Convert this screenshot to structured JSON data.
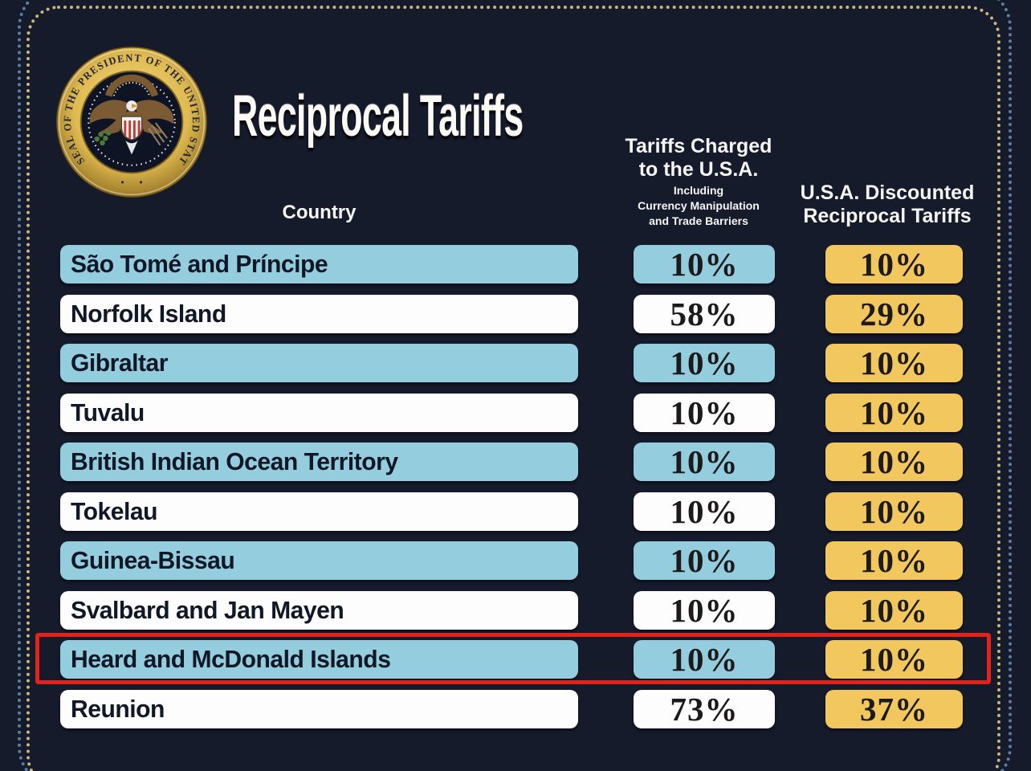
{
  "header": {
    "title": "Reciprocal Tariffs",
    "seal_text": "SEAL OF THE PRESIDENT OF THE UNITED STATES"
  },
  "table": {
    "country_header": "Country",
    "charged_header_line1": "Tariffs Charged",
    "charged_header_line2": "to the U.S.A.",
    "charged_subheader_line1": "Including",
    "charged_subheader_line2": "Currency Manipulation",
    "charged_subheader_line3": "and Trade Barriers",
    "discounted_header_line1": "U.S.A. Discounted",
    "discounted_header_line2": "Reciprocal Tariffs",
    "rows": [
      {
        "country": "São Tomé and Príncipe",
        "charged": "10%",
        "discounted": "10%",
        "tone": "blue",
        "highlighted": false
      },
      {
        "country": "Norfolk Island",
        "charged": "58%",
        "discounted": "29%",
        "tone": "white",
        "highlighted": false
      },
      {
        "country": "Gibraltar",
        "charged": "10%",
        "discounted": "10%",
        "tone": "blue",
        "highlighted": false
      },
      {
        "country": "Tuvalu",
        "charged": "10%",
        "discounted": "10%",
        "tone": "white",
        "highlighted": false
      },
      {
        "country": "British Indian Ocean Territory",
        "charged": "10%",
        "discounted": "10%",
        "tone": "blue",
        "highlighted": false
      },
      {
        "country": "Tokelau",
        "charged": "10%",
        "discounted": "10%",
        "tone": "white",
        "highlighted": false
      },
      {
        "country": "Guinea-Bissau",
        "charged": "10%",
        "discounted": "10%",
        "tone": "blue",
        "highlighted": false
      },
      {
        "country": "Svalbard and Jan Mayen",
        "charged": "10%",
        "discounted": "10%",
        "tone": "white",
        "highlighted": false
      },
      {
        "country": "Heard and McDonald Islands",
        "charged": "10%",
        "discounted": "10%",
        "tone": "blue",
        "highlighted": true
      },
      {
        "country": "Reunion",
        "charged": "73%",
        "discounted": "37%",
        "tone": "white",
        "highlighted": false
      }
    ]
  },
  "colors": {
    "background": "#161b2c",
    "row_blue": "#94cddd",
    "row_white": "#fdfdfd",
    "chip_gold": "#f2c75d",
    "highlight_red": "#e3231b",
    "border_outer_blue": "#5c80a4",
    "border_inner_gold": "#cbb77d",
    "seal_gold": "#d8ac45"
  },
  "chart_data": {
    "type": "table",
    "title": "Reciprocal Tariffs",
    "columns": [
      "Country",
      "Tariffs Charged to the U.S.A. Including Currency Manipulation and Trade Barriers",
      "U.S.A. Discounted Reciprocal Tariffs"
    ],
    "rows": [
      [
        "São Tomé and Príncipe",
        "10%",
        "10%"
      ],
      [
        "Norfolk Island",
        "58%",
        "29%"
      ],
      [
        "Gibraltar",
        "10%",
        "10%"
      ],
      [
        "Tuvalu",
        "10%",
        "10%"
      ],
      [
        "British Indian Ocean Territory",
        "10%",
        "10%"
      ],
      [
        "Tokelau",
        "10%",
        "10%"
      ],
      [
        "Guinea-Bissau",
        "10%",
        "10%"
      ],
      [
        "Svalbard and Jan Mayen",
        "10%",
        "10%"
      ],
      [
        "Heard and McDonald Islands",
        "10%",
        "10%"
      ],
      [
        "Reunion",
        "73%",
        "37%"
      ]
    ],
    "highlighted_row": "Heard and McDonald Islands"
  }
}
